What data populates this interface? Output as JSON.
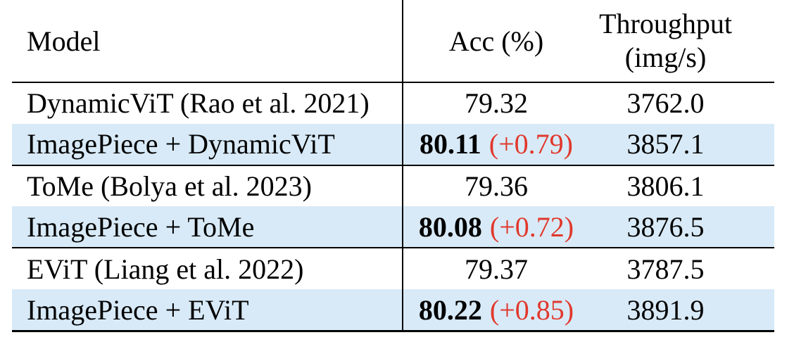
{
  "table": {
    "header": {
      "model": "Model",
      "acc": "Acc (%)",
      "throughput_line1": "Throughput",
      "throughput_line2": "(img/s)"
    },
    "rows": [
      {
        "model": "DynamicViT (Rao et al. 2021)",
        "acc": "79.32",
        "delta": "",
        "throughput": "3762.0",
        "highlight": false
      },
      {
        "model": "ImagePiece + DynamicViT",
        "acc": "80.11",
        "delta": "(+0.79)",
        "throughput": "3857.1",
        "highlight": true
      },
      {
        "model": "ToMe (Bolya et al. 2023)",
        "acc": "79.36",
        "delta": "",
        "throughput": "3806.1",
        "highlight": false
      },
      {
        "model": "ImagePiece + ToMe",
        "acc": "80.08",
        "delta": "(+0.72)",
        "throughput": "3876.5",
        "highlight": true
      },
      {
        "model": "EViT (Liang et al. 2022)",
        "acc": "79.37",
        "delta": "",
        "throughput": "3787.5",
        "highlight": false
      },
      {
        "model": "ImagePiece + EViT",
        "acc": "80.22",
        "delta": "(+0.85)",
        "throughput": "3891.9",
        "highlight": true
      }
    ],
    "colors": {
      "highlight_bg": "#d8eaf7",
      "delta_text": "#e1382c",
      "text": "#000000",
      "rule": "#000000"
    }
  }
}
